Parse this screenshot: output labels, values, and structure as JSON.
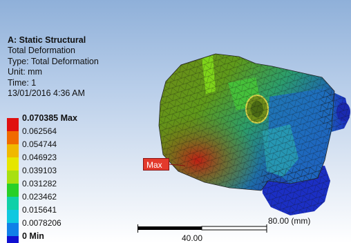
{
  "info": {
    "analysis": "A: Static Structural",
    "result": "Total Deformation",
    "type_line": "Type: Total Deformation",
    "unit_line": "Unit: mm",
    "time_line": "Time: 1",
    "date_line": "13/01/2016 4:36 AM"
  },
  "legend": {
    "entries": [
      {
        "label": "0.070385 Max",
        "color": "#e01010",
        "bold": true
      },
      {
        "label": "0.062564",
        "color": "#f06a00",
        "bold": false
      },
      {
        "label": "0.054744",
        "color": "#f0b800",
        "bold": false
      },
      {
        "label": "0.046923",
        "color": "#e6e600",
        "bold": false
      },
      {
        "label": "0.039103",
        "color": "#a8e010",
        "bold": false
      },
      {
        "label": "0.031282",
        "color": "#28d028",
        "bold": false
      },
      {
        "label": "0.023462",
        "color": "#10d0a8",
        "bold": false
      },
      {
        "label": "0.015641",
        "color": "#10c8e0",
        "bold": false
      },
      {
        "label": "0.0078206",
        "color": "#1080e8",
        "bold": false
      },
      {
        "label": "0 Min",
        "color": "#1010d0",
        "bold": true
      }
    ]
  },
  "probe": {
    "label": "Max"
  },
  "scale": {
    "end_label": "80.00 (mm)",
    "mid_label": "40.00"
  }
}
